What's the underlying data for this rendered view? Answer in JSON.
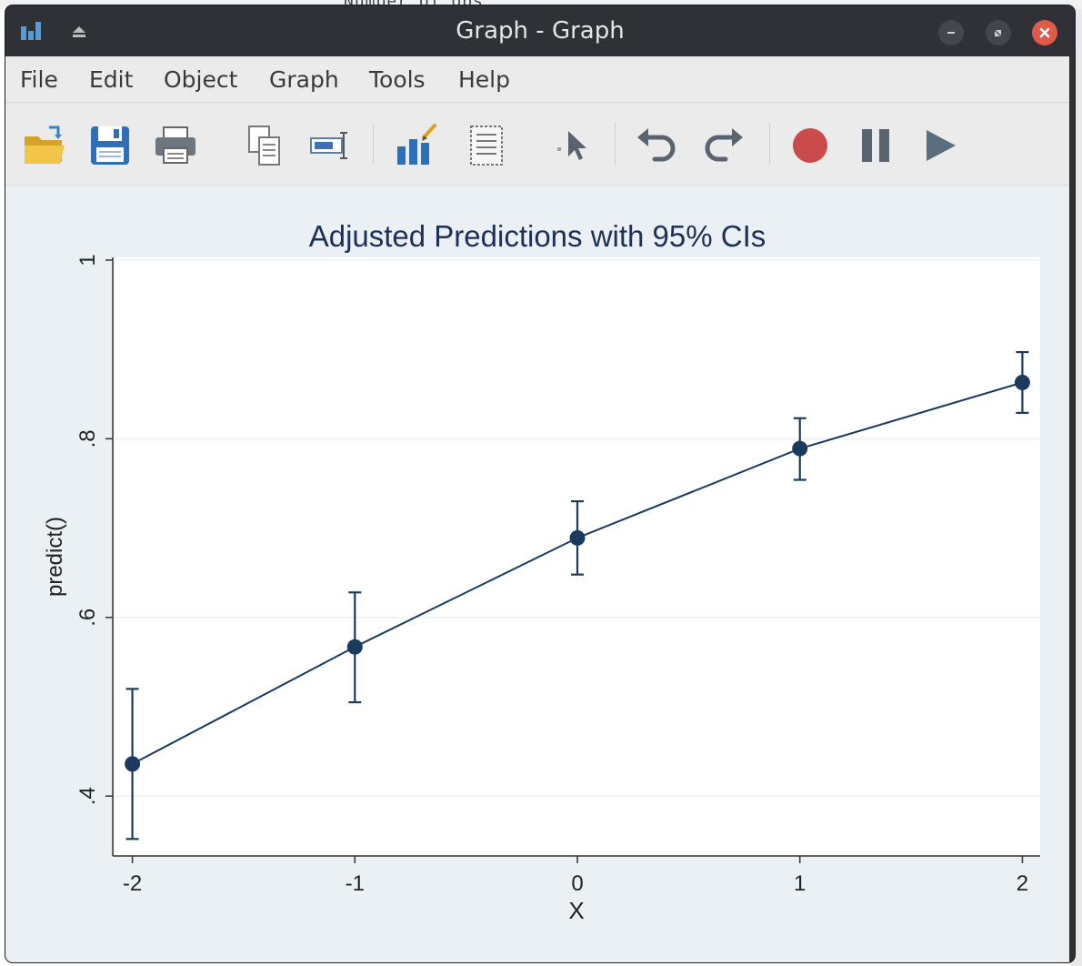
{
  "window": {
    "title": "Graph - Graph",
    "controls": [
      "minimize",
      "maximize",
      "close"
    ]
  },
  "background_window": {
    "partial_text": "Number of obs"
  },
  "menu": [
    "File",
    "Edit",
    "Object",
    "Graph",
    "Tools",
    "Help"
  ],
  "toolbar": [
    {
      "icon": "open-folder-icon"
    },
    {
      "icon": "save-icon"
    },
    {
      "icon": "print-icon"
    },
    {
      "icon": "copy-icon"
    },
    {
      "icon": "rename-icon"
    },
    {
      "icon": "graph-editor-icon"
    },
    {
      "icon": "object-browser-icon"
    },
    {
      "icon": "pointer-icon"
    },
    {
      "icon": "undo-icon"
    },
    {
      "icon": "redo-icon"
    },
    {
      "icon": "record-icon"
    },
    {
      "icon": "pause-icon"
    },
    {
      "icon": "play-icon"
    }
  ],
  "colors": {
    "series": "#1a3a5f",
    "plot_background": "#ffffff",
    "graph_background": "#eaf0f3",
    "title": "#1e2f5a",
    "record": "#c94b4b",
    "toolbar_blue": "#2d6fb8"
  },
  "chart_data": {
    "type": "line",
    "title": "Adjusted Predictions with 95% CIs",
    "xlabel": "X",
    "ylabel": "predict()",
    "x": [
      -2,
      -1,
      0,
      1,
      2
    ],
    "series": [
      {
        "values": [
          0.436,
          0.567,
          0.689,
          0.789,
          0.863
        ],
        "ci_lower": [
          0.352,
          0.505,
          0.648,
          0.754,
          0.829
        ],
        "ci_upper": [
          0.52,
          0.628,
          0.73,
          0.823,
          0.897
        ]
      }
    ],
    "xticks": [
      -2,
      -1,
      0,
      1,
      2
    ],
    "xtick_labels": [
      "-2",
      "-1",
      "0",
      "1",
      "2"
    ],
    "yticks": [
      0.4,
      0.6,
      0.8,
      1.0
    ],
    "ytick_labels": [
      ".4",
      ".6",
      ".8",
      "1"
    ],
    "xlim": [
      -2.08,
      2.08
    ],
    "ylim": [
      0.333,
      1.003
    ],
    "grid": true,
    "legend": "none"
  }
}
